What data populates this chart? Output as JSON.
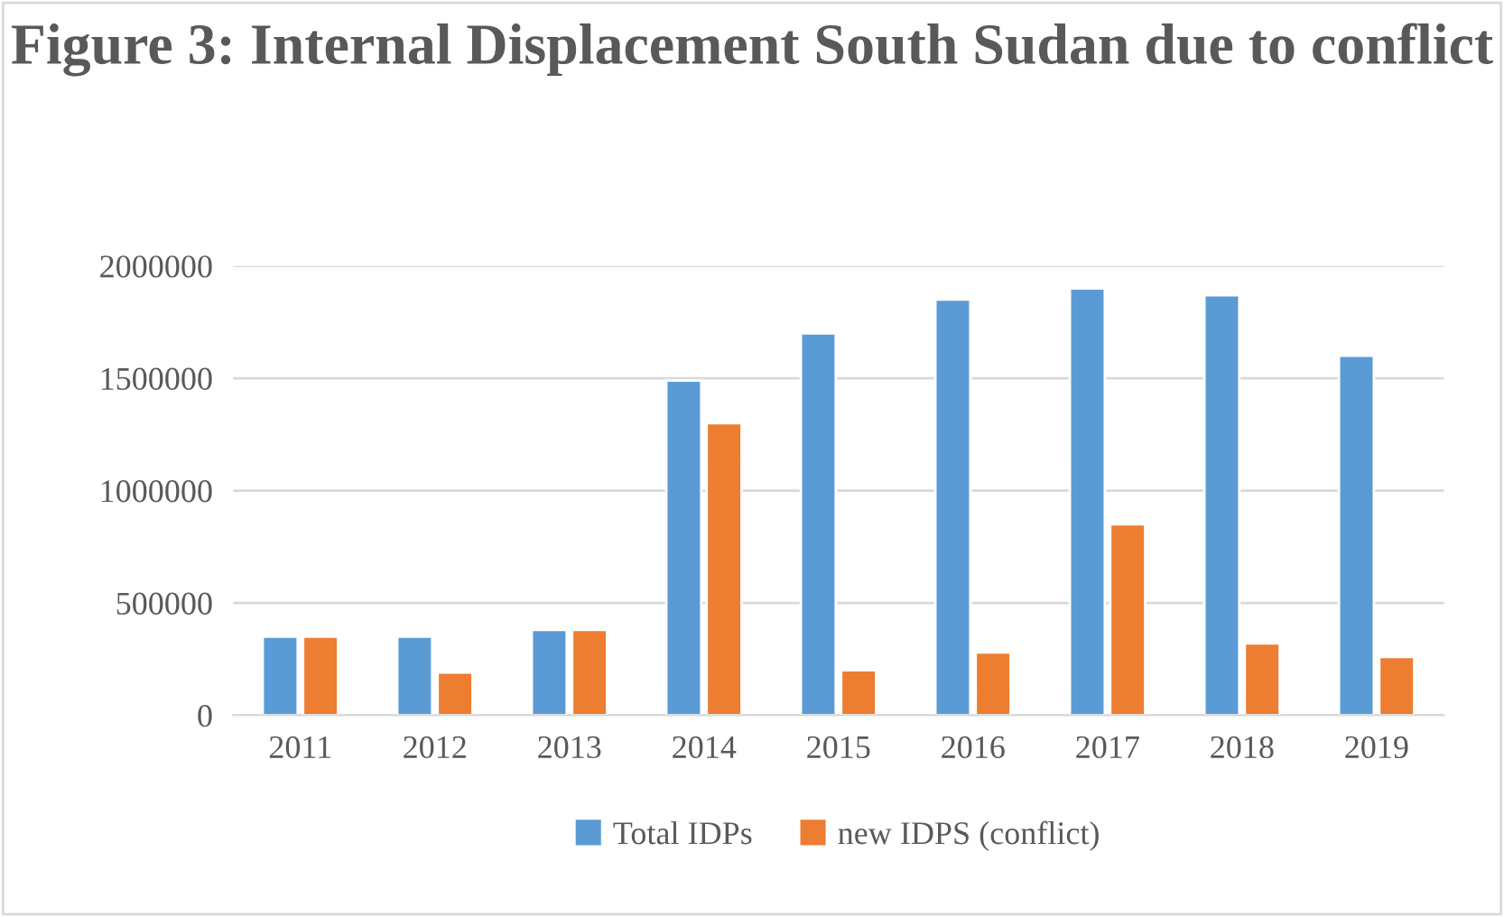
{
  "chart_data": {
    "type": "bar",
    "title": "Figure 3: Internal Displacement South Sudan due to conflict",
    "categories": [
      "2011",
      "2012",
      "2013",
      "2014",
      "2015",
      "2016",
      "2017",
      "2018",
      "2019"
    ],
    "series": [
      {
        "name": "Total IDPs",
        "color": "#5b9bd5",
        "values": [
          350000,
          350000,
          380000,
          1490000,
          1700000,
          1850000,
          1900000,
          1870000,
          1600000
        ]
      },
      {
        "name": "new IDPS (conflict)",
        "color": "#ed7d31",
        "values": [
          350000,
          190000,
          380000,
          1300000,
          200000,
          280000,
          850000,
          320000,
          260000
        ]
      }
    ],
    "ylim": [
      0,
      2000000
    ],
    "yticks": [
      0,
      500000,
      1000000,
      1500000,
      2000000
    ],
    "grid": "y",
    "legend": "bottom"
  }
}
